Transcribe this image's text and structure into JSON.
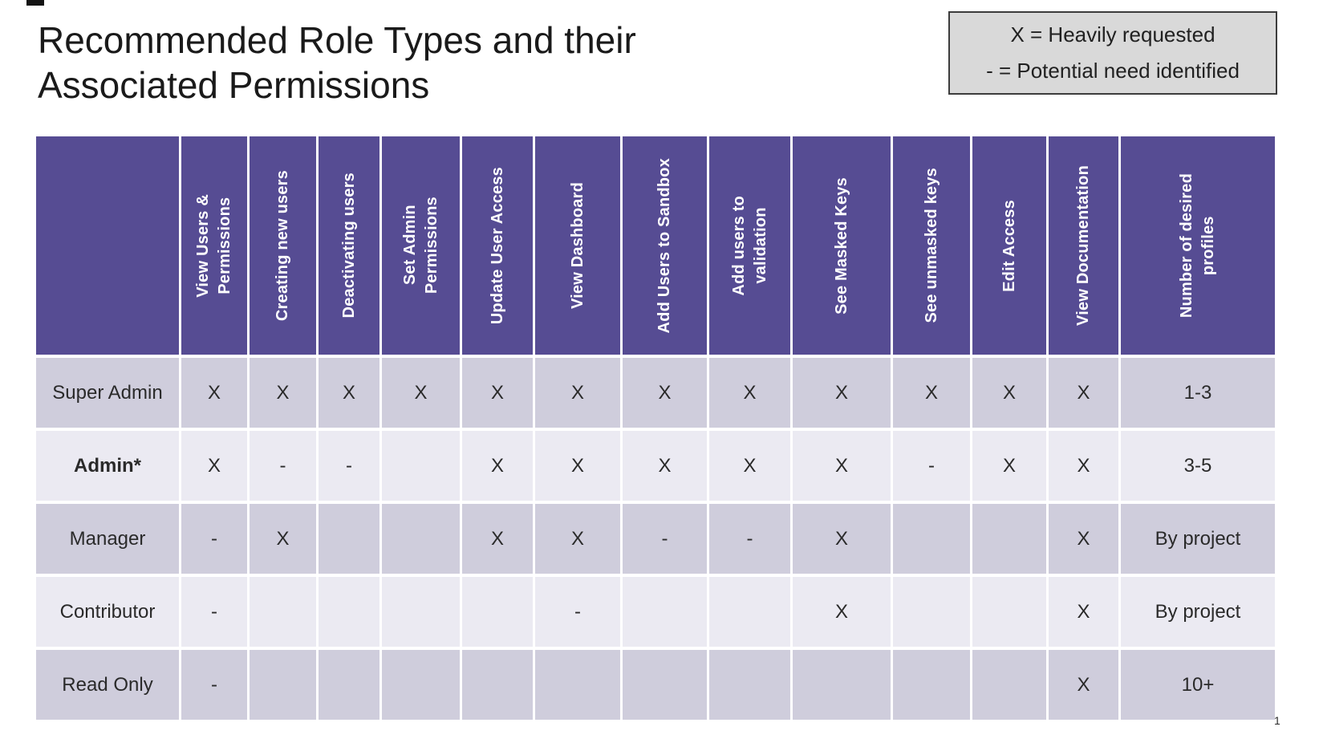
{
  "page": {
    "title": "Recommended Role Types and their Associated Permissions",
    "page_number": "1"
  },
  "legend": {
    "line1": "X = Heavily requested",
    "line2": "- = Potential need identified"
  },
  "colors": {
    "header_purple": "#564c93",
    "row_dark": "#cfcddc",
    "row_light": "#ebeaf2",
    "legend_bg": "#d9d9d9",
    "legend_border": "#3c3c3c"
  },
  "table": {
    "columns": [
      "View Users &\nPermissions",
      "Creating new users",
      "Deactivating users",
      "Set Admin\nPermissions",
      "Update User Access",
      "View Dashboard",
      "Add Users to Sandbox",
      "Add users to\nvalidation",
      "See Masked Keys",
      "See unmasked keys",
      "Edit Access",
      "View Documentation",
      "Number of desired\nprofiles"
    ],
    "rows": [
      {
        "role": "Super Admin",
        "bold": false,
        "cells": [
          "X",
          "X",
          "X",
          "X",
          "X",
          "X",
          "X",
          "X",
          "X",
          "X",
          "X",
          "X",
          "1-3"
        ]
      },
      {
        "role": "Admin*",
        "bold": true,
        "cells": [
          "X",
          "-",
          "-",
          "",
          "X",
          "X",
          "X",
          "X",
          "X",
          "-",
          "X",
          "X",
          "3-5"
        ]
      },
      {
        "role": "Manager",
        "bold": false,
        "cells": [
          "-",
          "X",
          "",
          "",
          "X",
          "X",
          "-",
          "-",
          "X",
          "",
          "",
          "X",
          "By project"
        ]
      },
      {
        "role": "Contributor",
        "bold": false,
        "cells": [
          "-",
          "",
          "",
          "",
          "",
          "-",
          "",
          "",
          "X",
          "",
          "",
          "X",
          "By project"
        ]
      },
      {
        "role": "Read Only",
        "bold": false,
        "cells": [
          "-",
          "",
          "",
          "",
          "",
          "",
          "",
          "",
          "",
          "",
          "",
          "X",
          "10+"
        ]
      }
    ]
  }
}
